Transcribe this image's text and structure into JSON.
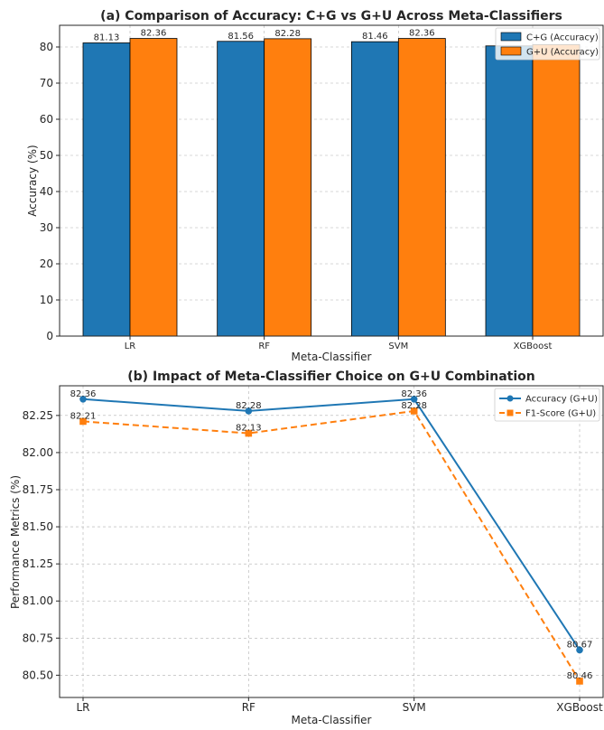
{
  "chart_data": [
    {
      "type": "bar",
      "title": "(a) Comparison of Accuracy: C+G vs G+U Across Meta-Classifiers",
      "xlabel": "Meta-Classifier",
      "ylabel": "Accuracy (%)",
      "categories": [
        "LR",
        "RF",
        "SVM",
        "XGBoost"
      ],
      "ylim": [
        0,
        86
      ],
      "yticks": [
        0,
        10,
        20,
        30,
        40,
        50,
        60,
        70,
        80
      ],
      "grid": true,
      "legend_position": "top-right",
      "series": [
        {
          "name": "C+G (Accuracy)",
          "values": [
            81.13,
            81.56,
            81.46,
            80.3
          ],
          "labels": [
            "81.13",
            "81.56",
            "81.46",
            ""
          ],
          "color": "#1f77b4"
        },
        {
          "name": "G+U (Accuracy)",
          "values": [
            82.36,
            82.28,
            82.36,
            80.67
          ],
          "labels": [
            "82.36",
            "82.28",
            "82.36",
            ""
          ],
          "color": "#ff7f0e"
        }
      ]
    },
    {
      "type": "line",
      "title": "(b) Impact of Meta-Classifier Choice on G+U Combination",
      "xlabel": "Meta-Classifier",
      "ylabel": "Performance Metrics (%)",
      "categories": [
        "LR",
        "RF",
        "SVM",
        "XGBoost"
      ],
      "ylim": [
        80.35,
        82.45
      ],
      "yticks": [
        80.5,
        80.75,
        81.0,
        81.25,
        81.5,
        81.75,
        82.0,
        82.25
      ],
      "ytick_labels": [
        "80.50",
        "80.75",
        "81.00",
        "81.25",
        "81.50",
        "81.75",
        "82.00",
        "82.25"
      ],
      "grid": true,
      "legend_position": "top-right",
      "series": [
        {
          "name": "Accuracy (G+U)",
          "values": [
            82.36,
            82.28,
            82.36,
            80.67
          ],
          "labels": [
            "82.36",
            "82.28",
            "82.36",
            "80.67"
          ],
          "color": "#1f77b4",
          "marker": "circle",
          "style": "solid"
        },
        {
          "name": "F1-Score (G+U)",
          "values": [
            82.21,
            82.13,
            82.28,
            80.46
          ],
          "labels": [
            "82.21",
            "82.13",
            "82.28",
            "80.46"
          ],
          "color": "#ff7f0e",
          "marker": "square",
          "style": "dashed"
        }
      ]
    }
  ]
}
